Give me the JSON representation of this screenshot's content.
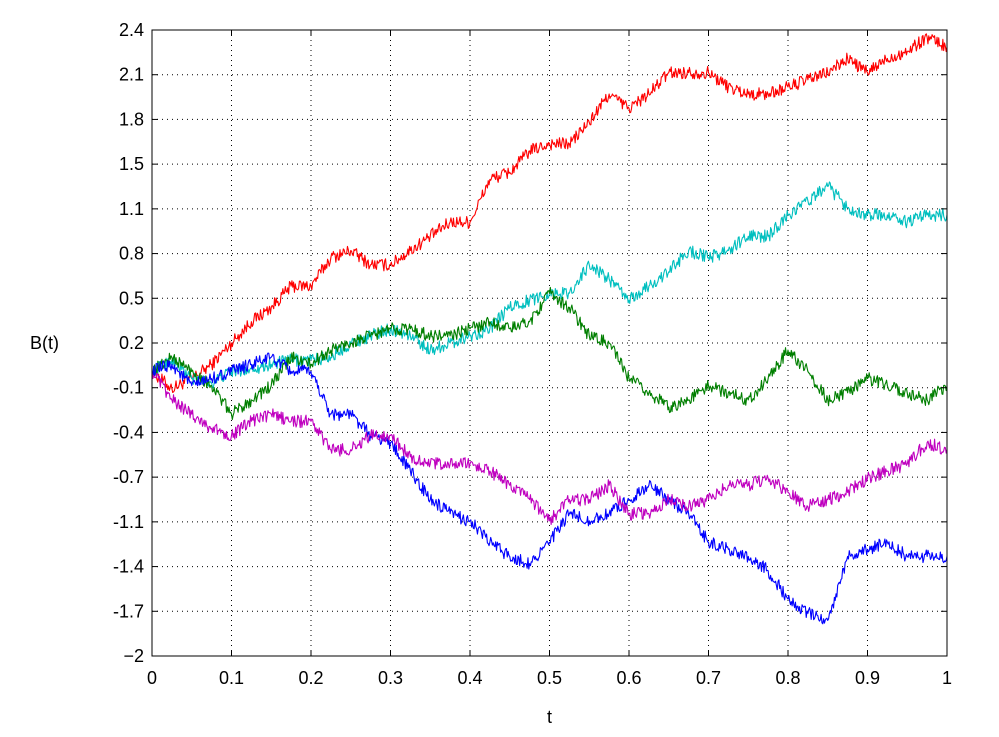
{
  "chart_data": {
    "type": "line",
    "title": "",
    "xlabel": "t",
    "ylabel": "B(t)",
    "xlim": [
      0,
      1
    ],
    "ylim": [
      -2,
      2.4
    ],
    "grid": true,
    "x_ticks": [
      0,
      0.1,
      0.2,
      0.3,
      0.4,
      0.5,
      0.6,
      0.7,
      0.8,
      0.9,
      1
    ],
    "x_tick_labels": [
      "0",
      "0.1",
      "0.2",
      "0.3",
      "0.4",
      "0.5",
      "0.6",
      "0.7",
      "0.8",
      "0.9",
      "1"
    ],
    "y_ticks": [
      -2,
      -1.7,
      -1.4,
      -1.1,
      -0.7,
      -0.4,
      -0.1,
      0.2,
      0.5,
      0.8,
      1.1,
      1.5,
      1.8,
      2.1,
      2.4
    ],
    "y_tick_labels": [
      "−2",
      "-1.7",
      "-1.4",
      "-1.1",
      "-0.7",
      "-0.4",
      "-0.1",
      "0.2",
      "0.5",
      "0.8",
      "1.1",
      "1.5",
      "1.8",
      "2.1",
      "2.4"
    ],
    "x": [
      0,
      0.025,
      0.05,
      0.075,
      0.1,
      0.125,
      0.15,
      0.175,
      0.2,
      0.225,
      0.25,
      0.275,
      0.3,
      0.325,
      0.35,
      0.375,
      0.4,
      0.425,
      0.45,
      0.475,
      0.5,
      0.525,
      0.55,
      0.575,
      0.6,
      0.625,
      0.65,
      0.675,
      0.7,
      0.725,
      0.75,
      0.775,
      0.8,
      0.825,
      0.85,
      0.875,
      0.9,
      0.925,
      0.95,
      0.975,
      1
    ],
    "series": [
      {
        "color": "#ff0000",
        "values": [
          0.0,
          -0.12,
          -0.05,
          0.05,
          0.2,
          0.35,
          0.45,
          0.6,
          0.6,
          0.8,
          0.85,
          0.75,
          0.75,
          0.85,
          0.95,
          1.05,
          1.05,
          1.35,
          1.4,
          1.55,
          1.6,
          1.6,
          1.75,
          1.95,
          1.85,
          1.95,
          2.1,
          2.1,
          2.1,
          2.0,
          1.95,
          1.95,
          2.0,
          2.05,
          2.1,
          2.2,
          2.1,
          2.2,
          2.25,
          2.35,
          2.28
        ]
      },
      {
        "color": "#00bfbf",
        "values": [
          0.0,
          0.08,
          -0.05,
          -0.08,
          0.0,
          0.02,
          0.05,
          0.08,
          0.08,
          0.1,
          0.2,
          0.25,
          0.3,
          0.25,
          0.15,
          0.2,
          0.25,
          0.3,
          0.45,
          0.5,
          0.55,
          0.55,
          0.75,
          0.65,
          0.5,
          0.6,
          0.7,
          0.85,
          0.8,
          0.85,
          0.95,
          0.95,
          1.1,
          1.2,
          1.3,
          1.15,
          1.1,
          1.1,
          1.05,
          1.1,
          1.1
        ]
      },
      {
        "color": "#007f00",
        "values": [
          0.0,
          0.1,
          0.0,
          -0.1,
          -0.3,
          -0.2,
          -0.1,
          0.1,
          0.05,
          0.15,
          0.2,
          0.25,
          0.3,
          0.3,
          0.25,
          0.25,
          0.3,
          0.35,
          0.3,
          0.35,
          0.55,
          0.45,
          0.25,
          0.2,
          -0.05,
          -0.15,
          -0.25,
          -0.2,
          -0.1,
          -0.15,
          -0.2,
          -0.05,
          0.15,
          0.0,
          -0.2,
          -0.15,
          -0.05,
          -0.1,
          -0.15,
          -0.2,
          -0.1
        ]
      },
      {
        "color": "#0000ff",
        "values": [
          0.0,
          0.05,
          -0.1,
          -0.05,
          0.0,
          0.05,
          0.1,
          0.0,
          0.0,
          -0.3,
          -0.3,
          -0.45,
          -0.5,
          -0.7,
          -0.9,
          -1.0,
          -1.05,
          -1.2,
          -1.3,
          -1.35,
          -1.2,
          -1.0,
          -1.05,
          -1.0,
          -0.9,
          -0.8,
          -0.9,
          -1.0,
          -1.2,
          -1.25,
          -1.3,
          -1.4,
          -1.6,
          -1.7,
          -1.75,
          -1.3,
          -1.25,
          -1.2,
          -1.3,
          -1.3,
          -1.3
        ]
      },
      {
        "color": "#bf00bf",
        "values": [
          0.0,
          -0.2,
          -0.3,
          -0.4,
          -0.45,
          -0.35,
          -0.3,
          -0.35,
          -0.35,
          -0.55,
          -0.55,
          -0.45,
          -0.45,
          -0.6,
          -0.65,
          -0.65,
          -0.65,
          -0.7,
          -0.8,
          -0.9,
          -1.05,
          -0.9,
          -0.9,
          -0.8,
          -1.0,
          -1.0,
          -0.9,
          -0.95,
          -0.9,
          -0.8,
          -0.8,
          -0.75,
          -0.85,
          -0.95,
          -0.9,
          -0.85,
          -0.75,
          -0.7,
          -0.65,
          -0.5,
          -0.55
        ]
      }
    ]
  }
}
